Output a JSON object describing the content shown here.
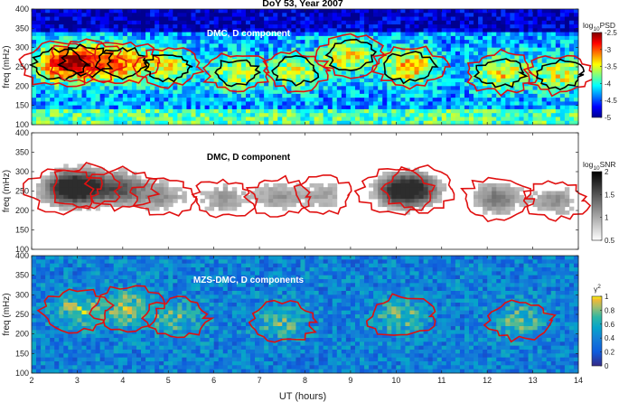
{
  "figure_title": "DoY 53, Year 2007",
  "chart_data": [
    {
      "type": "heatmap",
      "title": "DMC, D component",
      "xlabel": "",
      "ylabel": "freq (mHz)",
      "xlim": [
        2,
        14
      ],
      "ylim": [
        100,
        400
      ],
      "xticks": [
        2,
        3,
        4,
        5,
        6,
        7,
        8,
        9,
        10,
        11,
        12,
        13,
        14
      ],
      "yticks": [
        100,
        150,
        200,
        250,
        300,
        350,
        400
      ],
      "colorbar": {
        "label_base": "log",
        "label_sub": "10",
        "label_rest": "PSD",
        "range": [
          -5,
          -2.5
        ],
        "ticks": [
          -2.5,
          -3,
          -3.5,
          -4,
          -4.5,
          -5
        ],
        "colormap": "jet"
      },
      "contours": [
        "red",
        "black"
      ],
      "band": {
        "center_mHz": 250,
        "halfwidth_mHz": 40
      },
      "events": [
        {
          "t": 2.6,
          "f": 255,
          "v": 0.9
        },
        {
          "t": 3.2,
          "f": 265,
          "v": 0.85
        },
        {
          "t": 4.0,
          "f": 260,
          "v": 0.8
        },
        {
          "t": 5.0,
          "f": 250,
          "v": 0.6
        },
        {
          "t": 6.5,
          "f": 235,
          "v": 0.55
        },
        {
          "t": 7.8,
          "f": 240,
          "v": 0.55
        },
        {
          "t": 9.0,
          "f": 280,
          "v": 0.7
        },
        {
          "t": 10.3,
          "f": 250,
          "v": 0.8
        },
        {
          "t": 12.3,
          "f": 235,
          "v": 0.7
        },
        {
          "t": 13.6,
          "f": 230,
          "v": 0.6
        }
      ]
    },
    {
      "type": "heatmap",
      "title": "DMC, D component",
      "xlabel": "",
      "ylabel": "freq (mHz)",
      "xlim": [
        2,
        14
      ],
      "ylim": [
        100,
        400
      ],
      "xticks": [
        2,
        3,
        4,
        5,
        6,
        7,
        8,
        9,
        10,
        11,
        12,
        13,
        14
      ],
      "yticks": [
        100,
        150,
        200,
        250,
        300,
        350,
        400
      ],
      "colorbar": {
        "label_base": "log",
        "label_sub": "10",
        "label_rest": "SNR",
        "range": [
          0.5,
          2
        ],
        "ticks": [
          2,
          1.5,
          1,
          0.5
        ],
        "colormap": "gray"
      },
      "contours": [
        "red"
      ],
      "events": [
        {
          "t": 2.7,
          "f": 255,
          "v": 0.9
        },
        {
          "t": 3.2,
          "f": 260,
          "v": 0.8
        },
        {
          "t": 4.0,
          "f": 255,
          "v": 0.75
        },
        {
          "t": 4.9,
          "f": 235,
          "v": 0.5
        },
        {
          "t": 6.2,
          "f": 230,
          "v": 0.5
        },
        {
          "t": 7.4,
          "f": 235,
          "v": 0.5
        },
        {
          "t": 8.4,
          "f": 240,
          "v": 0.45
        },
        {
          "t": 10.0,
          "f": 250,
          "v": 0.85
        },
        {
          "t": 10.5,
          "f": 255,
          "v": 0.8
        },
        {
          "t": 12.2,
          "f": 230,
          "v": 0.7
        },
        {
          "t": 13.5,
          "f": 225,
          "v": 0.55
        }
      ]
    },
    {
      "type": "heatmap",
      "title": "MZS-DMC, D components",
      "xlabel": "UT (hours)",
      "ylabel": "freq (mHz)",
      "xlim": [
        2,
        14
      ],
      "ylim": [
        100,
        400
      ],
      "xticks": [
        2,
        3,
        4,
        5,
        6,
        7,
        8,
        9,
        10,
        11,
        12,
        13,
        14
      ],
      "yticks": [
        100,
        150,
        200,
        250,
        300,
        350,
        400
      ],
      "colorbar": {
        "label_base": "γ",
        "label_sup": "2",
        "range": [
          0,
          1
        ],
        "ticks": [
          1,
          0.8,
          0.6,
          0.4,
          0.2,
          0
        ],
        "colormap": "parula"
      },
      "contours": [
        "red"
      ],
      "events": [
        {
          "t": 3.0,
          "f": 260,
          "v": 0.75
        },
        {
          "t": 4.1,
          "f": 265,
          "v": 0.8
        },
        {
          "t": 5.2,
          "f": 240,
          "v": 0.55
        },
        {
          "t": 7.5,
          "f": 230,
          "v": 0.6
        },
        {
          "t": 10.1,
          "f": 245,
          "v": 0.65
        },
        {
          "t": 12.7,
          "f": 235,
          "v": 0.6
        }
      ]
    }
  ]
}
